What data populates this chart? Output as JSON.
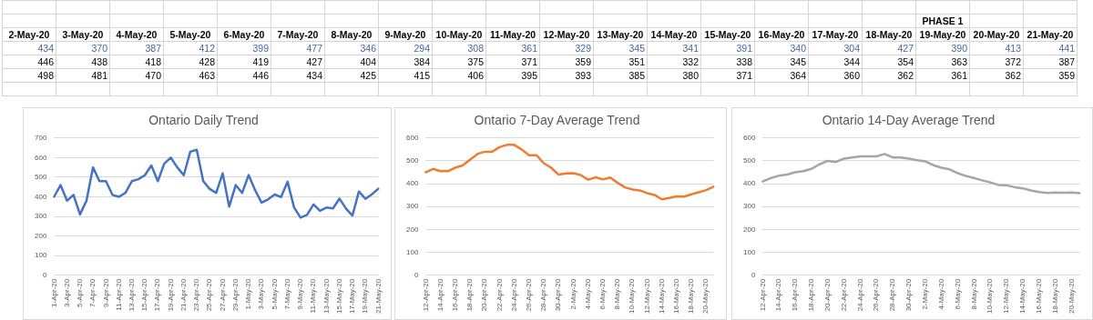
{
  "chart_data": [
    {
      "type": "other",
      "categories": [
        "2-May-20",
        "3-May-20",
        "4-May-20",
        "5-May-20",
        "6-May-20",
        "7-May-20",
        "8-May-20",
        "9-May-20",
        "10-May-20",
        "11-May-20",
        "12-May-20",
        "13-May-20",
        "14-May-20",
        "15-May-20",
        "16-May-20",
        "17-May-20",
        "18-May-20",
        "19-May-20",
        "20-May-20",
        "21-May-20"
      ],
      "series": [
        {
          "color": "#44679e",
          "values": [
            434,
            370,
            387,
            412,
            399,
            477,
            346,
            294,
            308,
            361,
            329,
            345,
            341,
            391,
            340,
            304,
            427,
            390,
            413,
            441
          ]
        },
        {
          "color": "#000000",
          "values": [
            446,
            438,
            418,
            428,
            419,
            427,
            404,
            384,
            375,
            371,
            359,
            351,
            332,
            338,
            345,
            344,
            354,
            363,
            372,
            387
          ]
        },
        {
          "color": "#000000",
          "values": [
            498,
            481,
            470,
            463,
            446,
            434,
            425,
            415,
            406,
            395,
            393,
            385,
            380,
            371,
            364,
            360,
            362,
            361,
            362,
            359
          ]
        }
      ],
      "annotations": [
        {
          "text": "PHASE 1",
          "x": "19-May-20"
        }
      ],
      "data_labels": true
    },
    {
      "type": "line",
      "title": "Ontario Daily Trend",
      "categories": [
        "1-Apr-20",
        null,
        "3-Apr-20",
        null,
        "5-Apr-20",
        null,
        "7-Apr-20",
        null,
        "9-Apr-20",
        null,
        "11-Apr-20",
        null,
        "13-Apr-20",
        null,
        "15-Apr-20",
        null,
        "17-Apr-20",
        null,
        "19-Apr-20",
        null,
        "21-Apr-20",
        null,
        "23-Apr-20",
        null,
        "25-Apr-20",
        null,
        "27-Apr-20",
        null,
        "29-Apr-20",
        null,
        "1-May-20",
        null,
        "3-May-20",
        null,
        "5-May-20",
        null,
        "7-May-20",
        null,
        "9-May-20",
        null,
        "11-May-20",
        null,
        "13-May-20",
        null,
        "15-May-20",
        null,
        "17-May-20",
        null,
        "19-May-20",
        null,
        "21-May-20"
      ],
      "series": [
        {
          "color": "#4472c4",
          "values": [
            400,
            460,
            380,
            410,
            310,
            380,
            550,
            480,
            480,
            410,
            400,
            420,
            480,
            490,
            510,
            560,
            480,
            570,
            600,
            550,
            510,
            630,
            640,
            480,
            440,
            420,
            520,
            350,
            460,
            420,
            511,
            434,
            370,
            387,
            412,
            399,
            477,
            346,
            294,
            308,
            361,
            329,
            345,
            341,
            391,
            340,
            304,
            427,
            390,
            413,
            441
          ]
        }
      ],
      "ylim": [
        0,
        700
      ],
      "yticks": [
        0,
        100,
        200,
        300,
        400,
        500,
        600,
        700
      ],
      "grid": "y",
      "marker": "none",
      "line_style": "solid"
    },
    {
      "type": "line",
      "title": "Ontario 7-Day Average Trend",
      "categories": [
        "12-Apr-20",
        null,
        "14-Apr-20",
        null,
        "16-Apr-20",
        null,
        "18-Apr-20",
        null,
        "20-Apr-20",
        null,
        "22-Apr-20",
        null,
        "24-Apr-20",
        null,
        "26-Apr-20",
        null,
        "28-Apr-20",
        null,
        "30-Apr-20",
        null,
        "2-May-20",
        null,
        "4-May-20",
        null,
        "6-May-20",
        null,
        "8-May-20",
        null,
        "10-May-20",
        null,
        "12-May-20",
        null,
        "14-May-20",
        null,
        "16-May-20",
        null,
        "18-May-20",
        null,
        "20-May-20",
        null
      ],
      "series": [
        {
          "color": "#ed7d31",
          "values": [
            450,
            465,
            455,
            455,
            470,
            480,
            505,
            530,
            540,
            540,
            560,
            570,
            570,
            550,
            525,
            525,
            490,
            470,
            440,
            445,
            446,
            438,
            418,
            428,
            419,
            427,
            404,
            384,
            375,
            371,
            359,
            351,
            332,
            338,
            345,
            344,
            354,
            363,
            372,
            387
          ]
        }
      ],
      "ylim": [
        0,
        600
      ],
      "yticks": [
        0,
        100,
        200,
        300,
        400,
        500,
        600
      ],
      "grid": "y",
      "marker": "none",
      "line_style": "solid"
    },
    {
      "type": "line",
      "title": "Ontario 14-Day Average Trend",
      "categories": [
        "12-Apr-20",
        null,
        "14-Apr-20",
        null,
        "16-Apr-20",
        null,
        "18-Apr-20",
        null,
        "20-Apr-20",
        null,
        "22-Apr-20",
        null,
        "24-Apr-20",
        null,
        "26-Apr-20",
        null,
        "28-Apr-20",
        null,
        "30-Apr-20",
        null,
        "2-May-20",
        null,
        "4-May-20",
        null,
        "6-May-20",
        null,
        "8-May-20",
        null,
        "10-May-20",
        null,
        "12-May-20",
        null,
        "14-May-20",
        null,
        "16-May-20",
        null,
        "18-May-20",
        null,
        "20-May-20",
        null
      ],
      "series": [
        {
          "color": "#a5a5a5",
          "values": [
            410,
            425,
            435,
            440,
            450,
            455,
            465,
            485,
            500,
            495,
            510,
            515,
            520,
            520,
            520,
            530,
            515,
            515,
            510,
            503,
            498,
            481,
            470,
            463,
            446,
            434,
            425,
            415,
            406,
            395,
            393,
            385,
            380,
            371,
            364,
            360,
            362,
            361,
            362,
            359
          ]
        }
      ],
      "ylim": [
        0,
        600
      ],
      "yticks": [
        0,
        100,
        200,
        300,
        400,
        500,
        600
      ],
      "grid": "y",
      "marker": "none",
      "line_style": "solid"
    }
  ]
}
